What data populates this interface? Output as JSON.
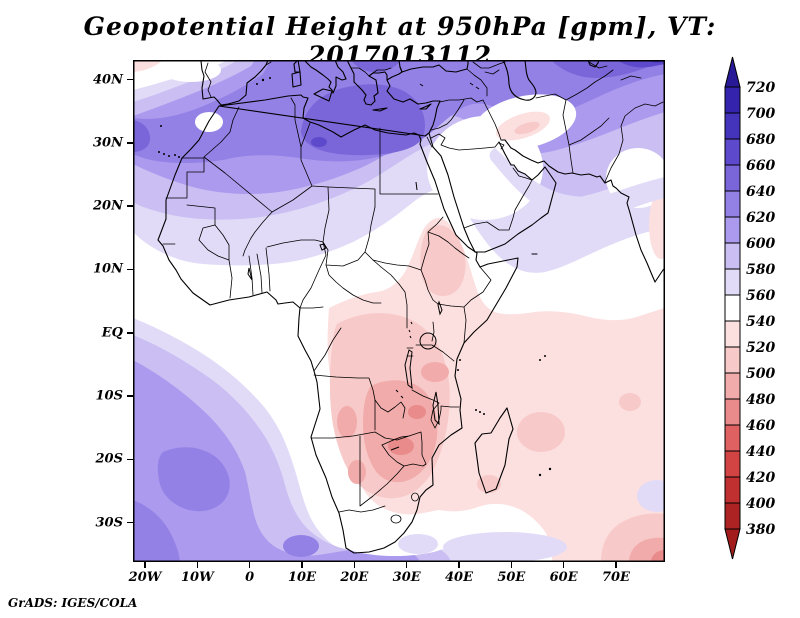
{
  "title": "Geopotential Height at 950hPa [gpm], VT: 2017013112",
  "attribution": "GrADS: IGES/COLA",
  "axes": {
    "lon_labels": [
      "20W",
      "10W",
      "0",
      "10E",
      "20E",
      "30E",
      "40E",
      "50E",
      "60E",
      "70E"
    ],
    "lon_values": [
      -20,
      -10,
      0,
      10,
      20,
      30,
      40,
      50,
      60,
      70
    ],
    "lat_labels": [
      "40N",
      "30N",
      "20N",
      "10N",
      "EQ",
      "10S",
      "20S",
      "30S"
    ],
    "lat_values": [
      40,
      30,
      20,
      10,
      0,
      -10,
      -20,
      -30
    ]
  },
  "colorbar": {
    "tick_values": [
      720,
      700,
      680,
      660,
      640,
      620,
      600,
      580,
      560,
      540,
      520,
      500,
      480,
      460,
      440,
      420,
      400,
      380
    ],
    "cell_colors_top_to_bottom": [
      "#3423ad",
      "#4334bb",
      "#5c49cb",
      "#7a66d8",
      "#9481e6",
      "#ac9aee",
      "#cabef3",
      "#e1dbf8",
      "#ffffff",
      "#fcdfdf",
      "#f8c9c9",
      "#f1abab",
      "#e98b8b",
      "#df6161",
      "#d24444",
      "#c03030",
      "#ad2222"
    ],
    "arrow_top_color": "#281a96",
    "arrow_bottom_color": "#a21c1c"
  },
  "palette": {
    "p460": "#e98b8b",
    "p480": "#f1abab",
    "p500": "#f8c9c9",
    "p520": "#fcdfdf",
    "p540": "#ffffff",
    "p560": "#e1dbf8",
    "p580": "#cabef3",
    "p600": "#ac9aee",
    "p620": "#9481e6",
    "p640": "#7a66d8",
    "p660": "#5c49cb",
    "p680": "#4334bb"
  },
  "chart_data": {
    "type": "filled-contour-map",
    "title": "Geopotential Height at 950hPa [gpm], VT: 2017013112",
    "variable": "Geopotential Height",
    "level_hPa": 950,
    "units": "gpm",
    "valid_time": "2017013112",
    "lon_range": [
      -22.3,
      79.4
    ],
    "lat_range": [
      -36.2,
      43.1
    ],
    "contour_interval": 20,
    "levels": [
      380,
      400,
      420,
      440,
      460,
      480,
      500,
      520,
      540,
      560,
      580,
      600,
      620,
      640,
      660,
      680,
      700,
      720
    ],
    "palette_low_to_high": [
      "#a21c1c",
      "#ad2222",
      "#c03030",
      "#d24444",
      "#df6161",
      "#e98b8b",
      "#f1abab",
      "#f8c9c9",
      "#fcdfdf",
      "#ffffff",
      "#e1dbf8",
      "#cabef3",
      "#ac9aee",
      "#9481e6",
      "#7a66d8",
      "#5c49cb",
      "#4334bb",
      "#3423ad",
      "#281a96"
    ],
    "legend_position": "right",
    "grid": false,
    "features": [
      {
        "region": "North Africa / central Mediterranean high",
        "approx_gpm": "640-660"
      },
      {
        "region": "NE Atlantic off Morocco high",
        "approx_gpm": "640-660"
      },
      {
        "region": "Central Asia (NE corner) high",
        "approx_gpm": "680-720"
      },
      {
        "region": "Iberia / Turkey / Caspian belt",
        "approx_gpm": "600-640"
      },
      {
        "region": "Sahel and Gulf of Guinea band",
        "approx_gpm": "540-560"
      },
      {
        "region": "Arabian Peninsula interior",
        "approx_gpm": "540-560"
      },
      {
        "region": "Mesopotamia local low spot",
        "approx_gpm": "500-540"
      },
      {
        "region": "Ethiopian Highlands low",
        "approx_gpm": "500-520"
      },
      {
        "region": "Congo Basin / Zambia / Tanzania low",
        "approx_gpm": "460-500"
      },
      {
        "region": "Madagascar and central Indian Ocean",
        "approx_gpm": "500-540"
      },
      {
        "region": "South Atlantic ridge",
        "approx_gpm": "600-640"
      },
      {
        "region": "Southern Ocean band south of Africa",
        "approx_gpm": "560-620"
      },
      {
        "region": "SE Indian Ocean corner low",
        "approx_gpm": "460-500"
      }
    ]
  }
}
